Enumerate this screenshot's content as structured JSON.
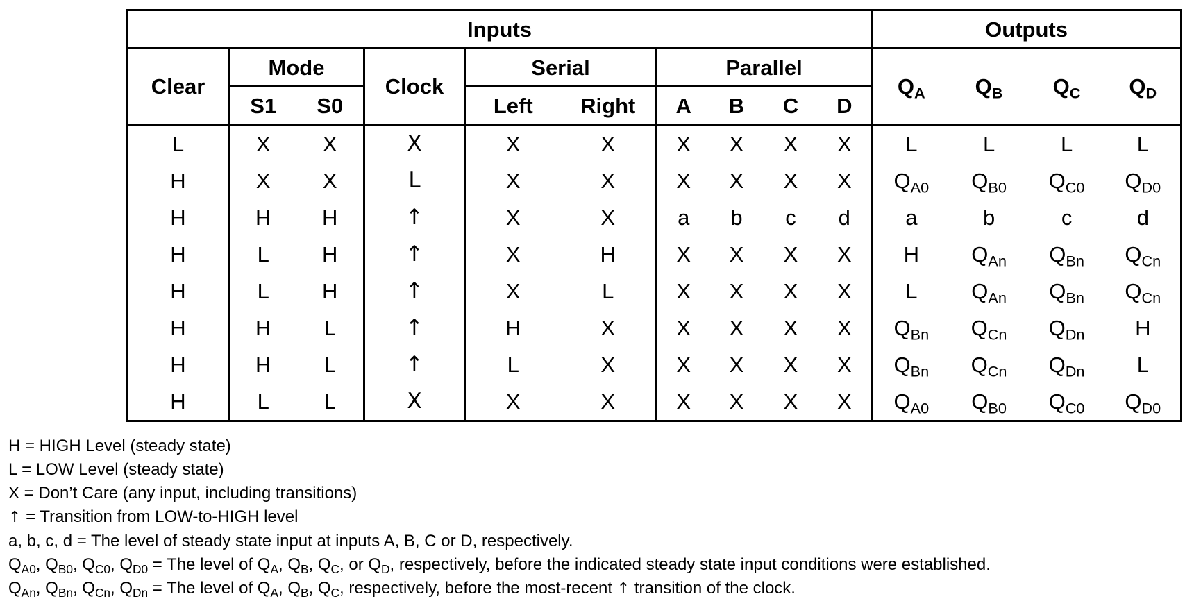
{
  "header": {
    "inputs": "Inputs",
    "outputs": "Outputs",
    "clear": "Clear",
    "mode": "Mode",
    "clock": "Clock",
    "serial": "Serial",
    "parallel": "Parallel",
    "s1": "S1",
    "s0": "S0",
    "left": "Left",
    "right": "Right",
    "a": "A",
    "b": "B",
    "c": "C",
    "d": "D",
    "qa": {
      "base": "Q",
      "sub": "A"
    },
    "qb": {
      "base": "Q",
      "sub": "B"
    },
    "qc": {
      "base": "Q",
      "sub": "C"
    },
    "qd": {
      "base": "Q",
      "sub": "D"
    }
  },
  "rows": [
    {
      "clear": "L",
      "s1": "X",
      "s0": "X",
      "clock": "X",
      "left": "X",
      "right": "X",
      "a": "X",
      "b": "X",
      "c": "X",
      "d": "X",
      "qa": {
        "base": "L",
        "sub": ""
      },
      "qb": {
        "base": "L",
        "sub": ""
      },
      "qc": {
        "base": "L",
        "sub": ""
      },
      "qd": {
        "base": "L",
        "sub": ""
      }
    },
    {
      "clear": "H",
      "s1": "X",
      "s0": "X",
      "clock": "L",
      "left": "X",
      "right": "X",
      "a": "X",
      "b": "X",
      "c": "X",
      "d": "X",
      "qa": {
        "base": "Q",
        "sub": "A0"
      },
      "qb": {
        "base": "Q",
        "sub": "B0"
      },
      "qc": {
        "base": "Q",
        "sub": "C0"
      },
      "qd": {
        "base": "Q",
        "sub": "D0"
      }
    },
    {
      "clear": "H",
      "s1": "H",
      "s0": "H",
      "clock": "↑",
      "left": "X",
      "right": "X",
      "a": "a",
      "b": "b",
      "c": "c",
      "d": "d",
      "qa": {
        "base": "a",
        "sub": ""
      },
      "qb": {
        "base": "b",
        "sub": ""
      },
      "qc": {
        "base": "c",
        "sub": ""
      },
      "qd": {
        "base": "d",
        "sub": ""
      }
    },
    {
      "clear": "H",
      "s1": "L",
      "s0": "H",
      "clock": "↑",
      "left": "X",
      "right": "H",
      "a": "X",
      "b": "X",
      "c": "X",
      "d": "X",
      "qa": {
        "base": "H",
        "sub": ""
      },
      "qb": {
        "base": "Q",
        "sub": "An"
      },
      "qc": {
        "base": "Q",
        "sub": "Bn"
      },
      "qd": {
        "base": "Q",
        "sub": "Cn"
      }
    },
    {
      "clear": "H",
      "s1": "L",
      "s0": "H",
      "clock": "↑",
      "left": "X",
      "right": "L",
      "a": "X",
      "b": "X",
      "c": "X",
      "d": "X",
      "qa": {
        "base": "L",
        "sub": ""
      },
      "qb": {
        "base": "Q",
        "sub": "An"
      },
      "qc": {
        "base": "Q",
        "sub": "Bn"
      },
      "qd": {
        "base": "Q",
        "sub": "Cn"
      }
    },
    {
      "clear": "H",
      "s1": "H",
      "s0": "L",
      "clock": "↑",
      "left": "H",
      "right": "X",
      "a": "X",
      "b": "X",
      "c": "X",
      "d": "X",
      "qa": {
        "base": "Q",
        "sub": "Bn"
      },
      "qb": {
        "base": "Q",
        "sub": "Cn"
      },
      "qc": {
        "base": "Q",
        "sub": "Dn"
      },
      "qd": {
        "base": "H",
        "sub": ""
      }
    },
    {
      "clear": "H",
      "s1": "H",
      "s0": "L",
      "clock": "↑",
      "left": "L",
      "right": "X",
      "a": "X",
      "b": "X",
      "c": "X",
      "d": "X",
      "qa": {
        "base": "Q",
        "sub": "Bn"
      },
      "qb": {
        "base": "Q",
        "sub": "Cn"
      },
      "qc": {
        "base": "Q",
        "sub": "Dn"
      },
      "qd": {
        "base": "L",
        "sub": ""
      }
    },
    {
      "clear": "H",
      "s1": "L",
      "s0": "L",
      "clock": "X",
      "left": "X",
      "right": "X",
      "a": "X",
      "b": "X",
      "c": "X",
      "d": "X",
      "qa": {
        "base": "Q",
        "sub": "A0"
      },
      "qb": {
        "base": "Q",
        "sub": "B0"
      },
      "qc": {
        "base": "Q",
        "sub": "C0"
      },
      "qd": {
        "base": "Q",
        "sub": "D0"
      }
    }
  ],
  "legend": {
    "high": "H = HIGH Level (steady state)",
    "low": "L = LOW Level (steady state)",
    "dont_care": "X = Don’t Care (any input, including transitions)",
    "arrow_symbol": "↑",
    "transition": " = Transition from LOW-to-HIGH level",
    "abcd": "a, b, c, d = The level of steady state input at inputs A, B, C or D, respectively.",
    "q0_line": {
      "q": "Q",
      "sub_a0": "A0",
      "sub_b0": "B0",
      "sub_c0": "C0",
      "sub_d0": "D0",
      "sub_a": "A",
      "sub_b": "B",
      "sub_c": "C",
      "sub_d": "D",
      "sep": ", ",
      "eq": " = The level of ",
      "or": ", or ",
      "tail": ", respectively, before the indicated steady state input conditions were established."
    },
    "qn_line": {
      "q": "Q",
      "sub_an": "An",
      "sub_bn": "Bn",
      "sub_cn": "Cn",
      "sub_dn": "Dn",
      "sub_a": "A",
      "sub_b": "B",
      "sub_c": "C",
      "sep": ", ",
      "eq": " = The level of ",
      "mid": ", respectively, before the most-recent ",
      "tail": " transition of the clock."
    }
  }
}
